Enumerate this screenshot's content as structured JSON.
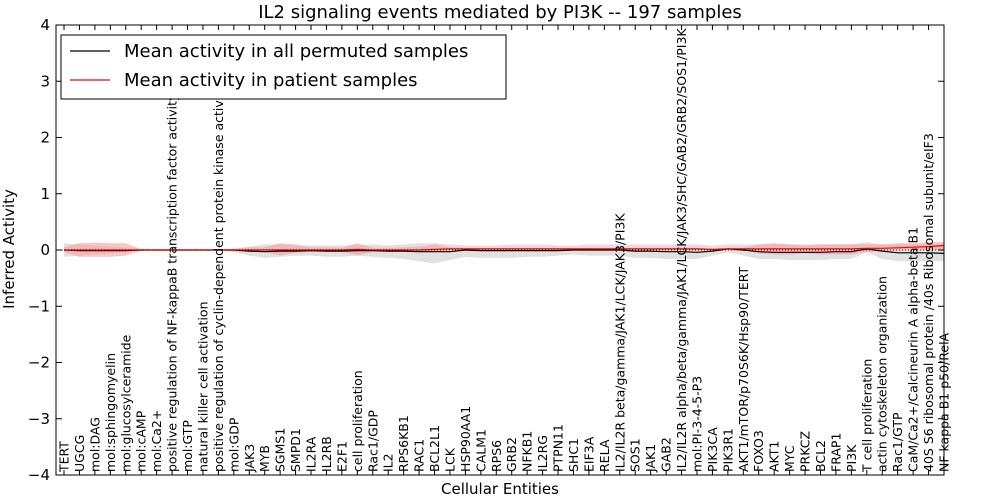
{
  "chart_data": {
    "type": "line",
    "title": "IL2 signaling events mediated by PI3K -- 197 samples",
    "xlabel": "Cellular Entities",
    "ylabel": "Inferred Activity",
    "ylim": [
      -4,
      4
    ],
    "yticks": [
      4,
      3,
      2,
      1,
      0,
      -1,
      -2,
      -3,
      -4
    ],
    "ytick_labels": [
      "4",
      "3",
      "2",
      "1",
      "0",
      "−1",
      "−2",
      "−3",
      "−4"
    ],
    "grid": false,
    "legend_position": "top-left",
    "categories": [
      "TERT",
      "UGCG",
      "mol:DAG",
      "mol:sphingomyelin",
      "mol:glucosylceramide",
      "mol:cAMP",
      "mol:Ca2+",
      "positive regulation of NF-kappaB transcription factor activity",
      "mol:GTP",
      "natural killer cell activation",
      "positive regulation of cyclin-dependent protein kinase activity",
      "mol:GDP",
      "JAK3",
      "MYB",
      "SGMS1",
      "SMPD1",
      "IL2RA",
      "IL2RB",
      "E2F1",
      "cell proliferation",
      "Rac1/GDP",
      "IL2",
      "RPS6KB1",
      "RAC1",
      "BCL2L1",
      "LCK",
      "HSP90AA1",
      "CALM1",
      "RPS6",
      "GRB2",
      "NFKB1",
      "IL2RG",
      "PTPN11",
      "SHC1",
      "EIF3A",
      "RELA",
      "IL2/IL2R beta/gamma/JAK1/LCK/JAK3/PI3K",
      "SOS1",
      "JAK1",
      "GAB2",
      "IL2/IL2R alpha/beta/gamma/JAK1/LCK/JAK3/SHC/GAB2/GRB2/SOS1/PI3K",
      "mol:PI-3-4-5-P3",
      "PIK3CA",
      "PIK3R1",
      "AKT1/mTOR/p70S6K/Hsp90/TERT",
      "FOXO3",
      "AKT1",
      "MYC",
      "PRKCZ",
      "BCL2",
      "FRAP1",
      "PI3K",
      "T cell proliferation",
      "actin cytoskeleton organization",
      "Rac1/GTP",
      "CaM/Ca2+/Calcineurin A alpha-beta B1",
      "40S S6 ribosomal protein /40s Ribosomal subunit/eIF3",
      "NF kappa B1 p50/RelA"
    ],
    "series": [
      {
        "name": "Mean activity in all permuted samples",
        "color": "#000000",
        "band_color": "#c8c8c8",
        "values": [
          0.0,
          -0.01,
          -0.01,
          -0.01,
          -0.01,
          0.0,
          0.0,
          0.0,
          0.0,
          0.0,
          0.0,
          0.0,
          -0.02,
          -0.03,
          -0.02,
          -0.02,
          -0.01,
          -0.02,
          -0.02,
          -0.01,
          -0.01,
          -0.02,
          -0.02,
          -0.03,
          -0.03,
          -0.03,
          0.0,
          -0.01,
          -0.01,
          -0.01,
          -0.01,
          -0.01,
          -0.01,
          0.0,
          0.0,
          0.0,
          0.0,
          -0.02,
          -0.02,
          -0.03,
          -0.03,
          -0.04,
          -0.02,
          0.02,
          0.0,
          -0.03,
          -0.04,
          -0.04,
          -0.04,
          -0.04,
          -0.03,
          -0.03,
          0.02,
          -0.02,
          -0.05,
          -0.05,
          -0.05,
          -0.06
        ],
        "band_upper": [
          0.12,
          0.1,
          0.08,
          0.06,
          0.05,
          0.02,
          0.0,
          0.0,
          0.0,
          0.0,
          0.0,
          0.02,
          0.06,
          0.1,
          0.1,
          0.08,
          0.08,
          0.08,
          0.08,
          0.08,
          0.1,
          0.08,
          0.1,
          0.12,
          0.12,
          0.1,
          0.08,
          0.08,
          0.08,
          0.1,
          0.1,
          0.1,
          0.08,
          0.08,
          0.1,
          0.1,
          0.1,
          0.1,
          0.1,
          0.1,
          0.1,
          0.1,
          0.08,
          0.1,
          0.1,
          0.1,
          0.1,
          0.1,
          0.1,
          0.1,
          0.1,
          0.1,
          0.14,
          0.1,
          0.1,
          0.1,
          0.1,
          0.1
        ],
        "band_lower": [
          -0.12,
          -0.1,
          -0.08,
          -0.06,
          -0.04,
          -0.02,
          0.0,
          0.0,
          0.0,
          0.0,
          0.0,
          -0.04,
          -0.1,
          -0.14,
          -0.12,
          -0.1,
          -0.1,
          -0.12,
          -0.12,
          -0.1,
          -0.12,
          -0.14,
          -0.16,
          -0.2,
          -0.24,
          -0.18,
          -0.12,
          -0.14,
          -0.14,
          -0.14,
          -0.12,
          -0.12,
          -0.1,
          -0.08,
          -0.1,
          -0.1,
          -0.1,
          -0.14,
          -0.14,
          -0.16,
          -0.16,
          -0.16,
          -0.1,
          -0.04,
          -0.1,
          -0.16,
          -0.16,
          -0.18,
          -0.18,
          -0.18,
          -0.16,
          -0.16,
          -0.04,
          -0.16,
          -0.2,
          -0.2,
          -0.2,
          -0.2
        ]
      },
      {
        "name": "Mean activity in patient samples",
        "color": "#ff0000",
        "band_color": "#f4a0a0",
        "values": [
          0.0,
          0.0,
          0.0,
          0.0,
          0.0,
          0.0,
          0.0,
          0.0,
          0.0,
          0.0,
          0.0,
          0.0,
          0.0,
          0.0,
          0.0,
          0.0,
          0.0,
          0.0,
          0.0,
          0.01,
          0.0,
          0.0,
          0.0,
          0.0,
          0.01,
          0.02,
          0.02,
          0.02,
          0.02,
          0.02,
          0.02,
          0.02,
          0.02,
          0.02,
          0.02,
          0.02,
          0.02,
          0.02,
          0.02,
          0.02,
          0.02,
          0.02,
          0.01,
          0.02,
          0.02,
          0.02,
          0.02,
          0.02,
          0.02,
          0.02,
          0.02,
          0.02,
          0.03,
          0.03,
          0.04,
          0.05,
          0.06,
          0.08
        ],
        "band_upper": [
          0.05,
          0.12,
          0.13,
          0.12,
          0.12,
          0.01,
          0.0,
          0.0,
          0.0,
          0.0,
          0.0,
          0.02,
          0.05,
          0.05,
          0.12,
          0.1,
          0.05,
          0.05,
          0.04,
          0.12,
          0.04,
          0.04,
          0.05,
          0.06,
          0.1,
          0.05,
          0.04,
          0.04,
          0.04,
          0.04,
          0.04,
          0.04,
          0.04,
          0.04,
          0.04,
          0.04,
          0.04,
          0.04,
          0.04,
          0.04,
          0.04,
          0.04,
          0.02,
          0.04,
          0.04,
          0.1,
          0.12,
          0.1,
          0.08,
          0.1,
          0.1,
          0.1,
          0.1,
          0.1,
          0.12,
          0.12,
          0.14,
          0.14
        ],
        "band_lower": [
          -0.04,
          -0.12,
          -0.12,
          -0.12,
          -0.1,
          -0.01,
          0.0,
          0.0,
          0.0,
          0.0,
          0.0,
          -0.02,
          -0.03,
          -0.03,
          -0.1,
          -0.05,
          -0.03,
          -0.03,
          -0.03,
          -0.1,
          -0.03,
          -0.03,
          -0.03,
          -0.03,
          -0.02,
          0.0,
          0.0,
          0.0,
          0.0,
          0.0,
          0.0,
          0.0,
          0.0,
          0.0,
          0.0,
          0.0,
          0.0,
          0.0,
          0.0,
          0.0,
          0.0,
          0.0,
          0.0,
          0.0,
          0.0,
          -0.06,
          -0.08,
          -0.08,
          -0.06,
          -0.08,
          -0.08,
          -0.08,
          -0.03,
          -0.02,
          -0.01,
          0.0,
          0.0,
          0.0
        ]
      }
    ]
  }
}
